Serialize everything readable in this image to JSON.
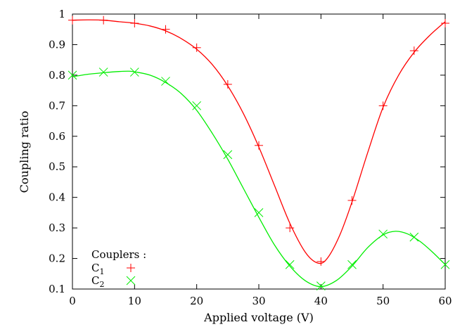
{
  "chart_data": {
    "type": "scatter",
    "title": "",
    "xlabel": "Applied voltage (V)",
    "ylabel": "Coupling ratio",
    "xlim": [
      0,
      60
    ],
    "ylim": [
      0.1,
      1.0
    ],
    "xticks": [
      0,
      10,
      20,
      30,
      40,
      50,
      60
    ],
    "yticks": [
      0.1,
      0.2,
      0.3,
      0.4,
      0.5,
      0.6,
      0.7,
      0.8,
      0.9,
      1
    ],
    "ytick_labels": [
      "0.1",
      "0.2",
      "0.3",
      "0.4",
      "0.5",
      "0.6",
      "0.7",
      "0.8",
      "0.9",
      "1"
    ],
    "grid": false,
    "legend": {
      "title": "Couplers :",
      "placement": "bottom-left"
    },
    "series": [
      {
        "name": "C",
        "subscript": "1",
        "color": "#ff0000",
        "marker": "plus",
        "points": [
          {
            "x": 0,
            "y": 0.98
          },
          {
            "x": 5,
            "y": 0.98
          },
          {
            "x": 10,
            "y": 0.97
          },
          {
            "x": 15,
            "y": 0.95
          },
          {
            "x": 20,
            "y": 0.89
          },
          {
            "x": 25,
            "y": 0.77
          },
          {
            "x": 30,
            "y": 0.57
          },
          {
            "x": 35,
            "y": 0.3
          },
          {
            "x": 40,
            "y": 0.19
          },
          {
            "x": 45,
            "y": 0.39
          },
          {
            "x": 50,
            "y": 0.7
          },
          {
            "x": 55,
            "y": 0.88
          },
          {
            "x": 60,
            "y": 0.97
          }
        ],
        "fit": [
          {
            "x": 0,
            "y": 0.98
          },
          {
            "x": 2.5,
            "y": 0.981
          },
          {
            "x": 5,
            "y": 0.98
          },
          {
            "x": 7.5,
            "y": 0.975
          },
          {
            "x": 10,
            "y": 0.97
          },
          {
            "x": 12.5,
            "y": 0.961
          },
          {
            "x": 15,
            "y": 0.945
          },
          {
            "x": 17.5,
            "y": 0.92
          },
          {
            "x": 20,
            "y": 0.885
          },
          {
            "x": 22.5,
            "y": 0.835
          },
          {
            "x": 25,
            "y": 0.765
          },
          {
            "x": 27.5,
            "y": 0.675
          },
          {
            "x": 30,
            "y": 0.565
          },
          {
            "x": 32.5,
            "y": 0.44
          },
          {
            "x": 35,
            "y": 0.315
          },
          {
            "x": 37.5,
            "y": 0.22
          },
          {
            "x": 39.5,
            "y": 0.185
          },
          {
            "x": 41,
            "y": 0.2
          },
          {
            "x": 43,
            "y": 0.275
          },
          {
            "x": 45,
            "y": 0.385
          },
          {
            "x": 47.5,
            "y": 0.545
          },
          {
            "x": 50,
            "y": 0.695
          },
          {
            "x": 52.5,
            "y": 0.8
          },
          {
            "x": 55,
            "y": 0.875
          },
          {
            "x": 57.5,
            "y": 0.93
          },
          {
            "x": 60,
            "y": 0.975
          }
        ]
      },
      {
        "name": "C",
        "subscript": "2",
        "color": "#00ee00",
        "marker": "cross",
        "points": [
          {
            "x": 0,
            "y": 0.8
          },
          {
            "x": 5,
            "y": 0.81
          },
          {
            "x": 10,
            "y": 0.81
          },
          {
            "x": 15,
            "y": 0.78
          },
          {
            "x": 20,
            "y": 0.7
          },
          {
            "x": 25,
            "y": 0.54
          },
          {
            "x": 30,
            "y": 0.35
          },
          {
            "x": 35,
            "y": 0.18
          },
          {
            "x": 40,
            "y": 0.11
          },
          {
            "x": 45,
            "y": 0.18
          },
          {
            "x": 50,
            "y": 0.28
          },
          {
            "x": 55,
            "y": 0.27
          },
          {
            "x": 60,
            "y": 0.18
          }
        ],
        "fit": [
          {
            "x": 0,
            "y": 0.795
          },
          {
            "x": 2.5,
            "y": 0.803
          },
          {
            "x": 5,
            "y": 0.808
          },
          {
            "x": 7.5,
            "y": 0.812
          },
          {
            "x": 9,
            "y": 0.813
          },
          {
            "x": 10,
            "y": 0.811
          },
          {
            "x": 12.5,
            "y": 0.8
          },
          {
            "x": 15,
            "y": 0.776
          },
          {
            "x": 17.5,
            "y": 0.74
          },
          {
            "x": 20,
            "y": 0.685
          },
          {
            "x": 22.5,
            "y": 0.61
          },
          {
            "x": 25,
            "y": 0.525
          },
          {
            "x": 27.5,
            "y": 0.43
          },
          {
            "x": 30,
            "y": 0.335
          },
          {
            "x": 32.5,
            "y": 0.245
          },
          {
            "x": 35,
            "y": 0.175
          },
          {
            "x": 37.5,
            "y": 0.127
          },
          {
            "x": 40,
            "y": 0.108
          },
          {
            "x": 42.5,
            "y": 0.128
          },
          {
            "x": 45,
            "y": 0.175
          },
          {
            "x": 47.5,
            "y": 0.235
          },
          {
            "x": 50,
            "y": 0.277
          },
          {
            "x": 52,
            "y": 0.289
          },
          {
            "x": 54,
            "y": 0.28
          },
          {
            "x": 56,
            "y": 0.255
          },
          {
            "x": 58,
            "y": 0.22
          },
          {
            "x": 60,
            "y": 0.18
          }
        ]
      }
    ]
  }
}
